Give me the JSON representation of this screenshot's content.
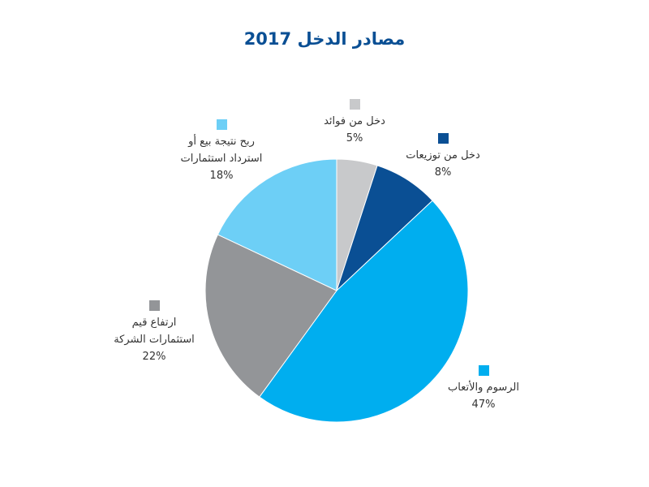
{
  "chart_data": {
    "type": "pie",
    "title": "مصادر الدخل 2017",
    "categories": [
      "دخل من فوائد",
      "دخل من توزيعات",
      "الرسوم والأتعاب",
      "ارتفاع قيم\nاستثمارات الشركة",
      "ربح نتيجة بيع أو\nاسترداد استثمارات"
    ],
    "values": [
      5,
      8,
      47,
      22,
      18
    ],
    "value_labels": [
      "5%",
      "8%",
      "47%",
      "22%",
      "18%"
    ],
    "colors": [
      "#c8c9cb",
      "#0a4f94",
      "#00aeef",
      "#939598",
      "#6dcff6"
    ]
  }
}
